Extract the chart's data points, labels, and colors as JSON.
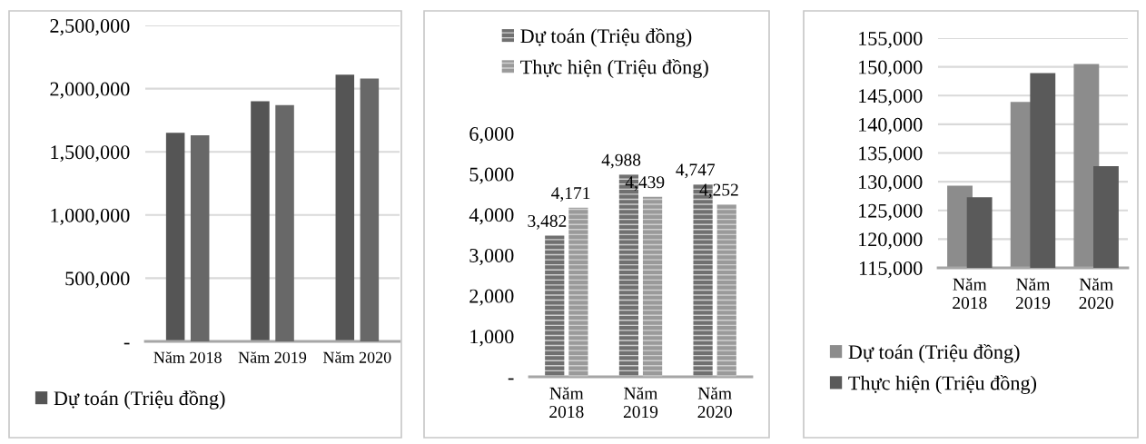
{
  "chart_data": [
    {
      "type": "bar",
      "categories": [
        "Năm 2018",
        "Năm 2019",
        "Năm 2020"
      ],
      "series": [
        {
          "name": "Dự toán (Triệu đồng)",
          "color": "#555555",
          "values": [
            1650000,
            1900000,
            2110000
          ]
        },
        {
          "color": "#686868",
          "values": [
            1630000,
            1870000,
            2080000
          ]
        }
      ],
      "ylim": [
        0,
        2500000
      ],
      "yticks": [
        {
          "value": 0,
          "label": "-"
        },
        {
          "value": 500000,
          "label": "500,000"
        },
        {
          "value": 1000000,
          "label": "1,000,000"
        },
        {
          "value": 1500000,
          "label": "1,500,000"
        },
        {
          "value": 2000000,
          "label": "2,000,000"
        },
        {
          "value": 2500000,
          "label": "2,500,000"
        }
      ],
      "grid": "y",
      "legend": "bottom"
    },
    {
      "type": "bar",
      "categories": [
        "Năm 2018",
        "Năm 2019",
        "Năm 2020"
      ],
      "series": [
        {
          "name": "Dự toán (Triệu đồng)",
          "color": "#707070",
          "values": [
            3482,
            4988,
            4747
          ],
          "value_labels": [
            "3,482",
            "4,988",
            "4,747"
          ]
        },
        {
          "name": "Thực hiện (Triệu đồng)",
          "color": "#9a9a9a",
          "values": [
            4171,
            4439,
            4252
          ],
          "value_labels": [
            "4,171",
            "4,439",
            "4,252"
          ]
        }
      ],
      "ylim": [
        0,
        6000
      ],
      "yticks": [
        {
          "value": 0,
          "label": "-"
        },
        {
          "value": 1000,
          "label": "1,000"
        },
        {
          "value": 2000,
          "label": "2,000"
        },
        {
          "value": 3000,
          "label": "3,000"
        },
        {
          "value": 4000,
          "label": "4,000"
        },
        {
          "value": 5000,
          "label": "5,000"
        },
        {
          "value": 6000,
          "label": "6,000"
        }
      ],
      "grid": false,
      "legend": "top"
    },
    {
      "type": "bar",
      "categories": [
        "Năm 2018",
        "Năm 2019",
        "Năm 2020"
      ],
      "series": [
        {
          "name": "Dự toán (Triệu đồng)",
          "color": "#8c8c8c",
          "values": [
            129300,
            143900,
            150500
          ]
        },
        {
          "name": "Thực hiện (Triệu đồng)",
          "color": "#5a5a5a",
          "values": [
            127300,
            148900,
            132700
          ]
        }
      ],
      "ylim": [
        115000,
        155000
      ],
      "yticks": [
        {
          "value": 115000,
          "label": "115,000"
        },
        {
          "value": 120000,
          "label": "120,000"
        },
        {
          "value": 125000,
          "label": "125,000"
        },
        {
          "value": 130000,
          "label": "130,000"
        },
        {
          "value": 135000,
          "label": "135,000"
        },
        {
          "value": 140000,
          "label": "140,000"
        },
        {
          "value": 145000,
          "label": "145,000"
        },
        {
          "value": 150000,
          "label": "150,000"
        },
        {
          "value": 155000,
          "label": "155,000"
        }
      ],
      "grid": "y",
      "legend": "bottom"
    }
  ]
}
